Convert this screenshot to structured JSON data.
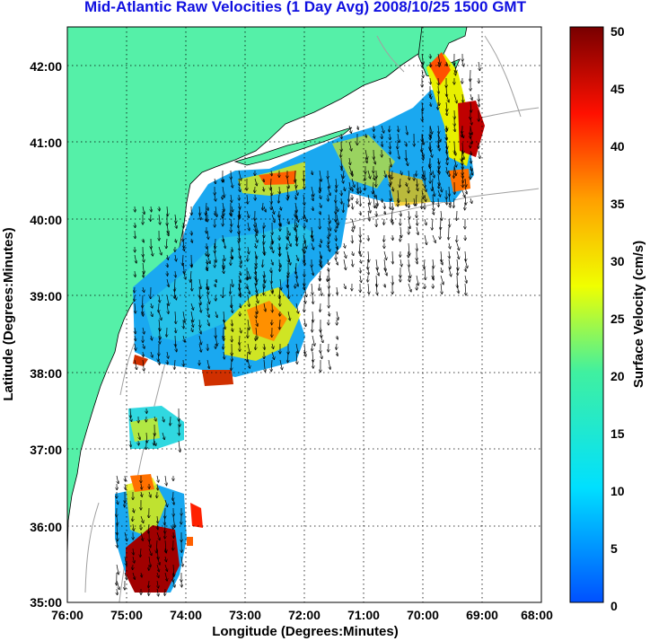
{
  "title": "Mid-Atlantic Raw Velocities (1 Day Avg) 2008/10/25 1500 GMT",
  "x_axis": {
    "label": "Longitude (Degrees:Minutes)",
    "ticks": [
      "76:00",
      "75:00",
      "74:00",
      "73:00",
      "72:00",
      "71:00",
      "70:00",
      "69:00",
      "68:00"
    ],
    "range": [
      -76,
      -68
    ]
  },
  "y_axis": {
    "label": "Latitude (Degrees:Minutes)",
    "ticks": [
      "35:00",
      "36:00",
      "37:00",
      "38:00",
      "39:00",
      "40:00",
      "41:00",
      "42:00"
    ],
    "range": [
      35,
      42.5
    ]
  },
  "colorbar": {
    "label": "Surface Velocity (cm/s)",
    "ticks": [
      "0",
      "5",
      "10",
      "15",
      "20",
      "25",
      "30",
      "35",
      "40",
      "45",
      "50"
    ],
    "range": [
      0,
      50
    ]
  },
  "colors": {
    "land": "#55f0a8",
    "grid": "#000000",
    "title": "#1010e0",
    "low_speed": "#0a60ff",
    "high_speed": "#800000"
  },
  "grid": "dotted"
}
